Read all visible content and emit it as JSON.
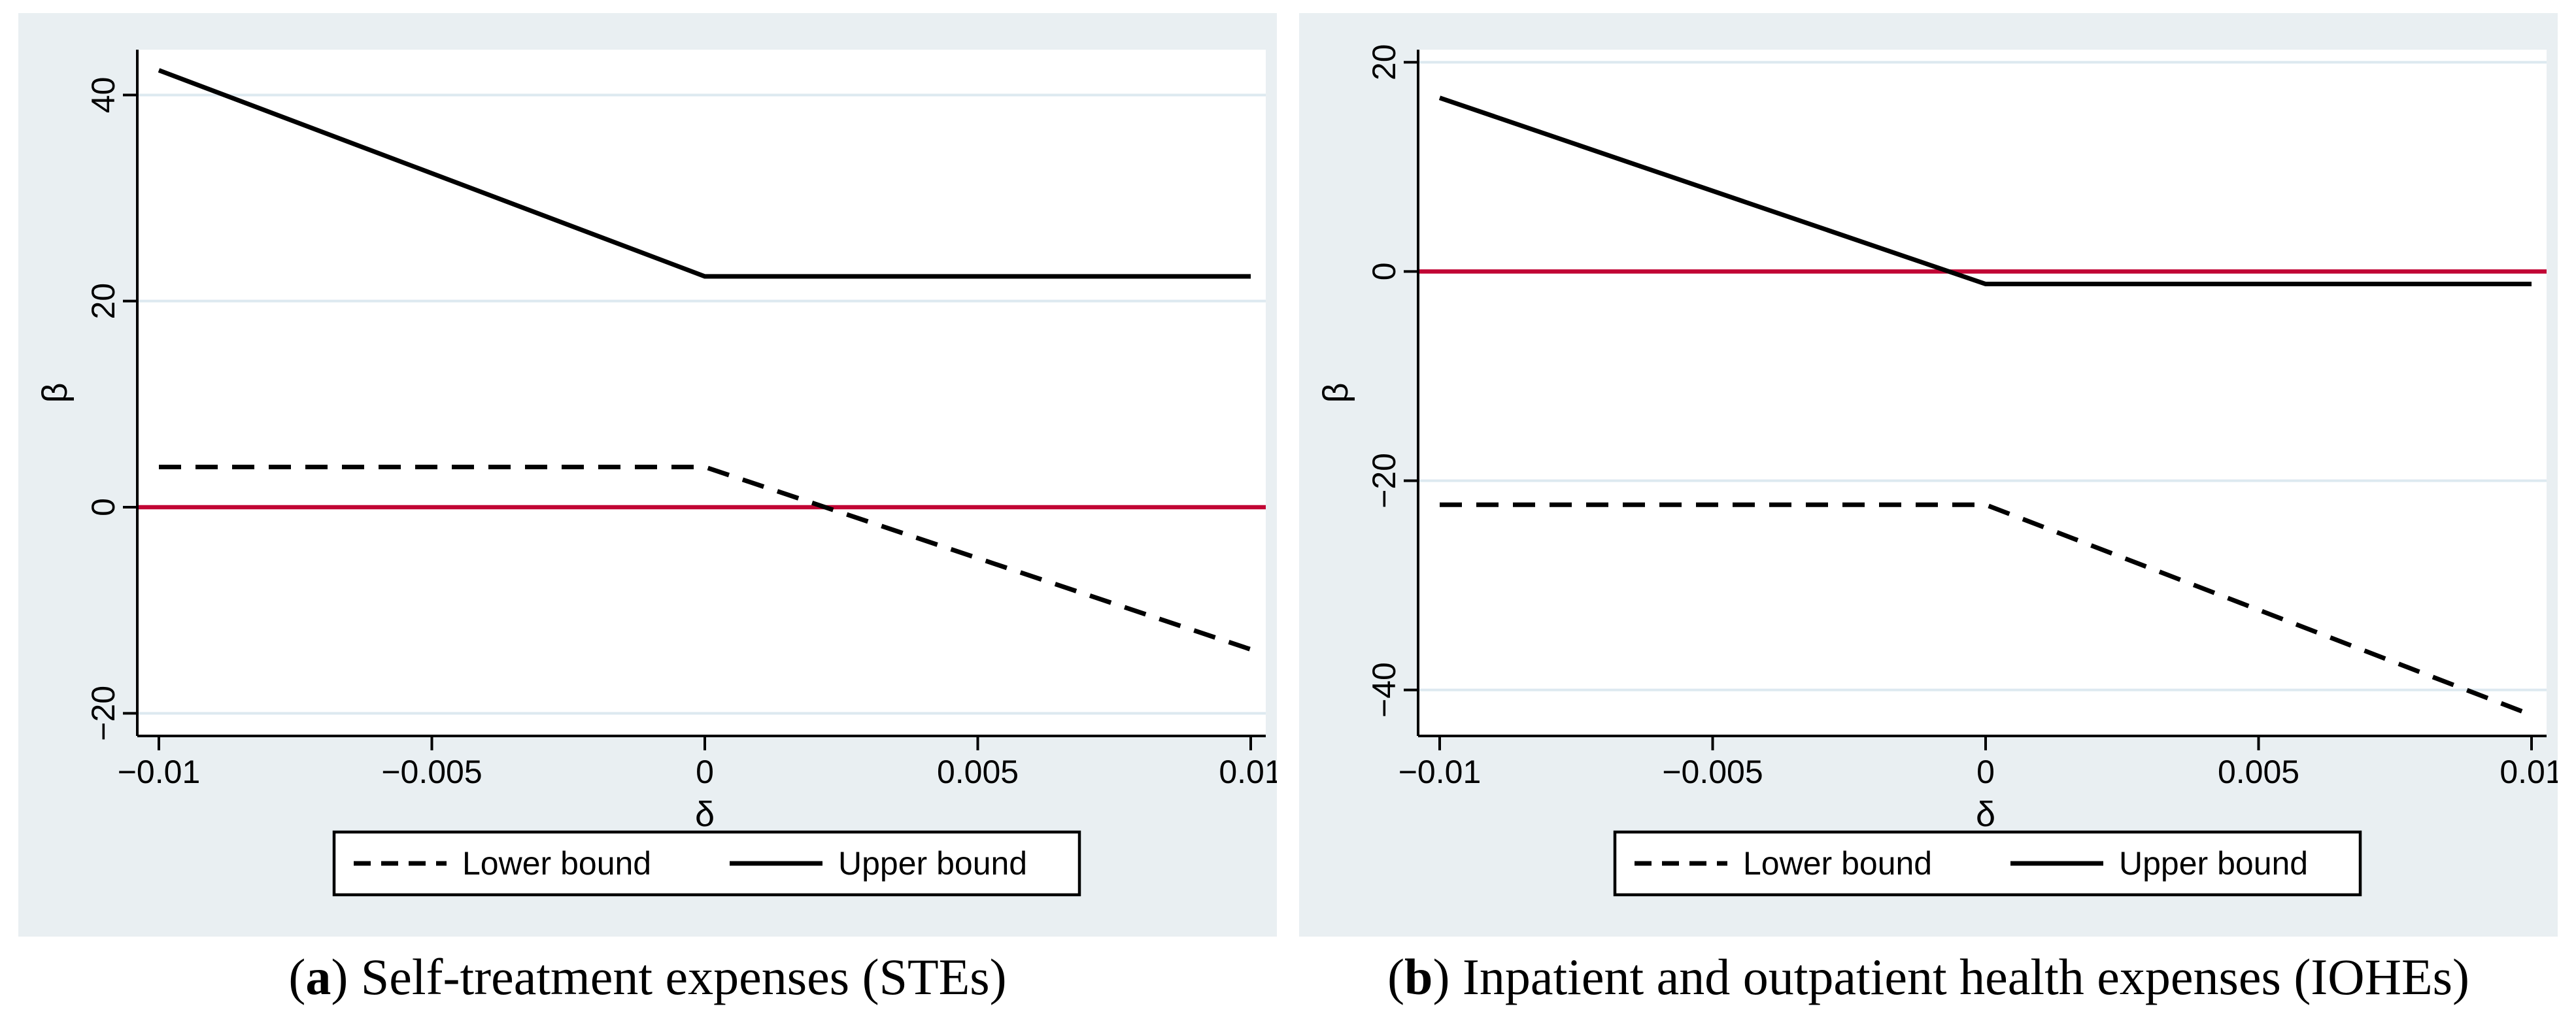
{
  "figure": {
    "background": "#ffffff",
    "panel_background": "#e9eff2",
    "plot_background": "#ffffff",
    "grid_color": "#dde9f0",
    "axis_color": "#000000",
    "series_color": "#000000",
    "zero_line_color": "#c10534",
    "legend": {
      "lower_label": "Lower bound",
      "upper_label": "Upper bound"
    }
  },
  "chart_data": [
    {
      "type": "line",
      "panel_id": "a",
      "caption": {
        "prefix": "(",
        "bold": "a",
        "suffix": ") Self-treatment expenses (STEs)"
      },
      "xlabel": "δ",
      "ylabel": "β",
      "xlim": [
        -0.01,
        0.01
      ],
      "ylim": [
        -22.2,
        44.4
      ],
      "xticks": [
        -0.01,
        -0.005,
        0,
        0.005,
        0.01
      ],
      "xtick_labels": [
        "−0.01",
        "−0.005",
        "0",
        "0.005",
        "0.01"
      ],
      "yticks": [
        40,
        20,
        0,
        -20
      ],
      "ytick_labels": [
        "40",
        "20",
        "0",
        "−20"
      ],
      "refline_y": 0,
      "grid": "horizontal",
      "legend_position": "bottom",
      "x": [
        -0.01,
        0,
        0.01
      ],
      "series": [
        {
          "name": "Lower bound",
          "style": "dashed",
          "values": [
            3.9,
            3.9,
            -13.8
          ]
        },
        {
          "name": "Upper bound",
          "style": "solid",
          "values": [
            42.4,
            22.4,
            22.4
          ]
        }
      ]
    },
    {
      "type": "line",
      "panel_id": "b",
      "caption": {
        "prefix": "(",
        "bold": "b",
        "suffix": ") Inpatient and outpatient health expenses (IOHEs)"
      },
      "xlabel": "δ",
      "ylabel": "β",
      "xlim": [
        -0.01,
        0.01
      ],
      "ylim": [
        -44.4,
        21.2
      ],
      "xticks": [
        -0.01,
        -0.005,
        0,
        0.005,
        0.01
      ],
      "xtick_labels": [
        "−0.01",
        "−0.005",
        "0",
        "0.005",
        "0.01"
      ],
      "yticks": [
        20,
        0,
        -20,
        -40
      ],
      "ytick_labels": [
        "20",
        "0",
        "−20",
        "−40"
      ],
      "refline_y": 0,
      "grid": "horizontal",
      "legend_position": "bottom",
      "x": [
        -0.01,
        0,
        0.01
      ],
      "series": [
        {
          "name": "Lower bound",
          "style": "dashed",
          "values": [
            -22.3,
            -22.3,
            -42.4
          ]
        },
        {
          "name": "Upper bound",
          "style": "solid",
          "values": [
            16.6,
            -1.2,
            -1.2
          ]
        }
      ]
    }
  ]
}
